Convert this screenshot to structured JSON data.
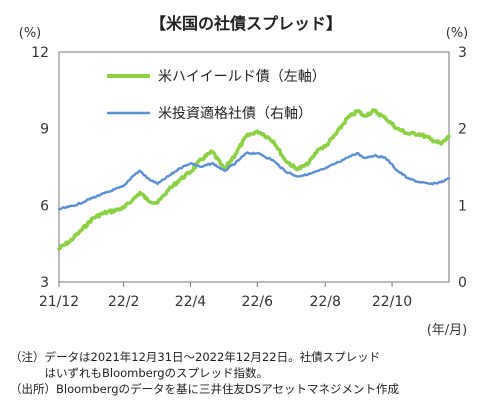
{
  "chart_data": {
    "type": "line",
    "title": "【米国の社債スプレッド】",
    "y_left_unit": "(%)",
    "y_right_unit": "(%)",
    "x_unit": "(年/月)",
    "y_left_range": [
      3,
      12
    ],
    "y_right_range": [
      0,
      3
    ],
    "y_left_ticks": [
      "3",
      "6",
      "9",
      "12"
    ],
    "y_right_ticks": [
      "0",
      "1",
      "2",
      "3"
    ],
    "x_ticks": [
      {
        "label": "21/12",
        "date": "2021-12-31"
      },
      {
        "label": "22/2",
        "date": "2022-02-28"
      },
      {
        "label": "22/4",
        "date": "2022-04-30"
      },
      {
        "label": "22/6",
        "date": "2022-06-30"
      },
      {
        "label": "22/8",
        "date": "2022-08-31"
      },
      {
        "label": "22/10",
        "date": "2022-10-31"
      }
    ],
    "x_range": [
      "2021-12-31",
      "2022-12-22"
    ],
    "legend_placement": "top-center",
    "series": [
      {
        "name": "米ハイイールド債（左軸）",
        "axis": "left",
        "color": "#8cd044",
        "points": [
          [
            "2021-12-31",
            4.3
          ],
          [
            "2022-01-10",
            4.6
          ],
          [
            "2022-01-20",
            5.0
          ],
          [
            "2022-01-31",
            5.5
          ],
          [
            "2022-02-10",
            5.7
          ],
          [
            "2022-02-20",
            5.8
          ],
          [
            "2022-02-28",
            5.9
          ],
          [
            "2022-03-08",
            6.2
          ],
          [
            "2022-03-15",
            6.5
          ],
          [
            "2022-03-22",
            6.2
          ],
          [
            "2022-03-31",
            6.1
          ],
          [
            "2022-04-10",
            6.6
          ],
          [
            "2022-04-20",
            7.0
          ],
          [
            "2022-04-30",
            7.3
          ],
          [
            "2022-05-10",
            7.8
          ],
          [
            "2022-05-20",
            8.1
          ],
          [
            "2022-05-31",
            7.4
          ],
          [
            "2022-06-10",
            8.0
          ],
          [
            "2022-06-20",
            8.7
          ],
          [
            "2022-06-30",
            8.9
          ],
          [
            "2022-07-05",
            8.8
          ],
          [
            "2022-07-15",
            8.5
          ],
          [
            "2022-07-25",
            7.8
          ],
          [
            "2022-08-05",
            7.4
          ],
          [
            "2022-08-15",
            7.6
          ],
          [
            "2022-08-25",
            8.2
          ],
          [
            "2022-08-31",
            8.3
          ],
          [
            "2022-09-10",
            8.8
          ],
          [
            "2022-09-20",
            9.4
          ],
          [
            "2022-09-30",
            9.7
          ],
          [
            "2022-10-05",
            9.5
          ],
          [
            "2022-10-15",
            9.7
          ],
          [
            "2022-10-25",
            9.4
          ],
          [
            "2022-11-05",
            9.0
          ],
          [
            "2022-11-15",
            8.8
          ],
          [
            "2022-11-25",
            8.8
          ],
          [
            "2022-12-05",
            8.6
          ],
          [
            "2022-12-15",
            8.4
          ],
          [
            "2022-12-22",
            8.7
          ]
        ]
      },
      {
        "name": "米投資適格社債（右軸）",
        "axis": "right",
        "color": "#5b8fd4",
        "points": [
          [
            "2021-12-31",
            0.95
          ],
          [
            "2022-01-15",
            1.0
          ],
          [
            "2022-01-31",
            1.1
          ],
          [
            "2022-02-15",
            1.18
          ],
          [
            "2022-02-28",
            1.25
          ],
          [
            "2022-03-08",
            1.38
          ],
          [
            "2022-03-15",
            1.45
          ],
          [
            "2022-03-22",
            1.35
          ],
          [
            "2022-03-31",
            1.28
          ],
          [
            "2022-04-10",
            1.38
          ],
          [
            "2022-04-20",
            1.48
          ],
          [
            "2022-04-30",
            1.55
          ],
          [
            "2022-05-10",
            1.5
          ],
          [
            "2022-05-20",
            1.55
          ],
          [
            "2022-05-31",
            1.45
          ],
          [
            "2022-06-10",
            1.55
          ],
          [
            "2022-06-20",
            1.68
          ],
          [
            "2022-06-30",
            1.68
          ],
          [
            "2022-07-05",
            1.65
          ],
          [
            "2022-07-15",
            1.58
          ],
          [
            "2022-07-25",
            1.45
          ],
          [
            "2022-08-05",
            1.38
          ],
          [
            "2022-08-15",
            1.4
          ],
          [
            "2022-08-25",
            1.45
          ],
          [
            "2022-08-31",
            1.48
          ],
          [
            "2022-09-10",
            1.55
          ],
          [
            "2022-09-20",
            1.62
          ],
          [
            "2022-09-30",
            1.68
          ],
          [
            "2022-10-05",
            1.62
          ],
          [
            "2022-10-15",
            1.65
          ],
          [
            "2022-10-25",
            1.62
          ],
          [
            "2022-11-05",
            1.45
          ],
          [
            "2022-11-15",
            1.35
          ],
          [
            "2022-11-25",
            1.3
          ],
          [
            "2022-12-05",
            1.28
          ],
          [
            "2022-12-15",
            1.3
          ],
          [
            "2022-12-22",
            1.35
          ]
        ]
      }
    ]
  },
  "notes": [
    "（注）データは2021年12月31日～2022年12月22日。社債スプレッド",
    "　　　はいずれもBloombergのスプレッド指数。",
    "（出所）Bloombergのデータを基に三井住友DSアセットマネジメント作成"
  ]
}
